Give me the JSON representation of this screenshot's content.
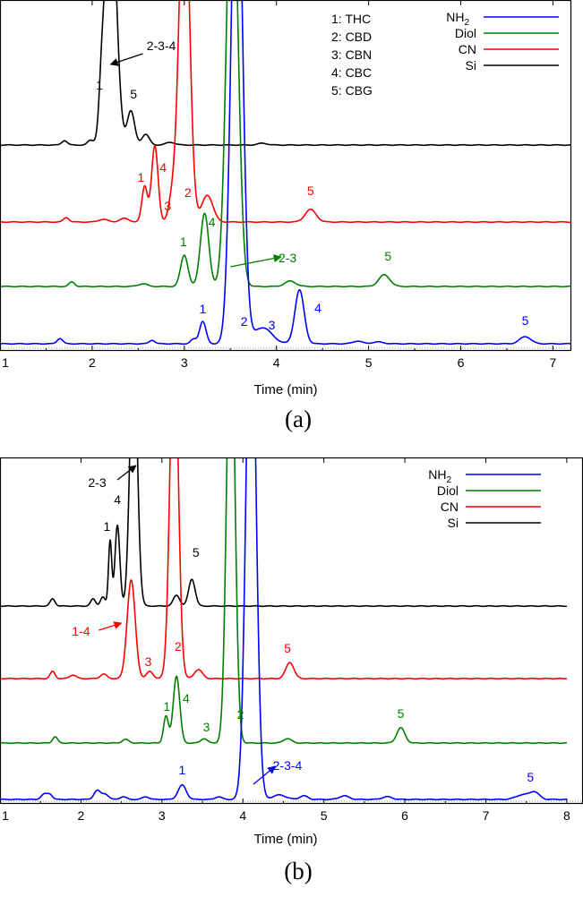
{
  "chart_data": [
    {
      "type": "line",
      "panel_tag": "(a)",
      "xlabel": "Time (min)",
      "ylabel": "",
      "xlim": [
        1,
        7.2
      ],
      "x_ticks": [
        1,
        2,
        3,
        4,
        5,
        6,
        7
      ],
      "grid": false,
      "legend_position": "top-right",
      "peak_key": [
        "1: THC",
        "2: CBD",
        "3: CBN",
        "4: CBC",
        "5: CBG"
      ],
      "legend": [
        {
          "name": "NH",
          "sub": "2",
          "color": "#0000ff"
        },
        {
          "name": "Diol",
          "color": "#008000"
        },
        {
          "name": "CN",
          "color": "#ff0000"
        },
        {
          "name": "Si",
          "color": "#000000"
        }
      ],
      "series": [
        {
          "name": "Si",
          "color": "#000000",
          "baseline": 162,
          "clip_top": 0,
          "peaks": [
            [
              1.7,
              5,
              0.03
            ],
            [
              1.98,
              5,
              0.03
            ],
            [
              2.1,
              35,
              0.025
            ],
            [
              2.2,
              300,
              0.06
            ],
            [
              2.42,
              38,
              0.04
            ],
            [
              2.58,
              12,
              0.04
            ],
            [
              2.85,
              3,
              0.05
            ],
            [
              3.85,
              2,
              0.05
            ]
          ],
          "labels": [
            {
              "text": "1",
              "x": 2.08,
              "y": 100
            },
            {
              "text": "5",
              "x": 2.45,
              "y": 110
            },
            {
              "text": "2-3-4",
              "x": 2.75,
              "y": 56,
              "arrow_to": [
                2.2,
                72
              ],
              "arrow_from": [
                2.55,
                60
              ]
            }
          ]
        },
        {
          "name": "CN",
          "color": "#ff0000",
          "baseline": 248,
          "clip_top": 0,
          "peaks": [
            [
              1.72,
              5,
              0.03
            ],
            [
              2.12,
              3,
              0.05
            ],
            [
              2.35,
              4,
              0.05
            ],
            [
              2.57,
              40,
              0.03
            ],
            [
              2.68,
              85,
              0.035
            ],
            [
              2.87,
              25,
              0.04
            ],
            [
              3.0,
              400,
              0.055
            ],
            [
              3.25,
              30,
              0.06
            ],
            [
              4.37,
              14,
              0.06
            ]
          ],
          "labels": [
            {
              "text": "1",
              "x": 2.53,
              "y": 203
            },
            {
              "text": "4",
              "x": 2.77,
              "y": 192
            },
            {
              "text": "3",
              "x": 2.82,
              "y": 235
            },
            {
              "text": "2",
              "x": 3.04,
              "y": 220
            },
            {
              "text": "5",
              "x": 4.37,
              "y": 218
            }
          ]
        },
        {
          "name": "Diol",
          "color": "#008000",
          "baseline": 320,
          "clip_top": 0,
          "peaks": [
            [
              1.78,
              5,
              0.03
            ],
            [
              2.55,
              3,
              0.05
            ],
            [
              3.0,
              35,
              0.04
            ],
            [
              3.22,
              82,
              0.045
            ],
            [
              3.52,
              500,
              0.06
            ],
            [
              4.15,
              6,
              0.06
            ],
            [
              5.17,
              13,
              0.06
            ]
          ],
          "labels": [
            {
              "text": "1",
              "x": 2.99,
              "y": 275
            },
            {
              "text": "4",
              "x": 3.3,
              "y": 253
            },
            {
              "text": "2-3",
              "x": 4.12,
              "y": 293,
              "arrow_to": [
                4.05,
                287
              ],
              "arrow_from": [
                3.5,
                298
              ]
            },
            {
              "text": "5",
              "x": 5.21,
              "y": 291
            }
          ]
        },
        {
          "name": "NH2",
          "color": "#0000ff",
          "baseline": 384,
          "clip_top": 0,
          "peaks": [
            [
              1.65,
              6,
              0.03
            ],
            [
              2.65,
              4,
              0.03
            ],
            [
              3.1,
              5,
              0.03
            ],
            [
              3.2,
              25,
              0.035
            ],
            [
              3.57,
              600,
              0.06
            ],
            [
              3.85,
              18,
              0.1
            ],
            [
              4.25,
              60,
              0.05
            ],
            [
              4.88,
              3,
              0.05
            ],
            [
              5.1,
              2,
              0.06
            ],
            [
              6.7,
              8,
              0.06
            ]
          ],
          "labels": [
            {
              "text": "1",
              "x": 3.2,
              "y": 350
            },
            {
              "text": "2",
              "x": 3.65,
              "y": 364
            },
            {
              "text": "3",
              "x": 3.95,
              "y": 368
            },
            {
              "text": "4",
              "x": 4.45,
              "y": 349
            },
            {
              "text": "5",
              "x": 6.7,
              "y": 363
            }
          ]
        }
      ]
    },
    {
      "type": "line",
      "panel_tag": "(b)",
      "xlabel": "Time (min)",
      "ylabel": "",
      "xlim": [
        1,
        8.2
      ],
      "x_ticks": [
        1,
        2,
        3,
        4,
        5,
        6,
        7,
        8
      ],
      "grid": false,
      "legend_position": "top-right",
      "legend": [
        {
          "name": "NH",
          "sub": "2",
          "color": "#0000ff"
        },
        {
          "name": "Diol",
          "color": "#008000"
        },
        {
          "name": "CN",
          "color": "#ff0000"
        },
        {
          "name": "Si",
          "color": "#000000"
        }
      ],
      "series": [
        {
          "name": "Si",
          "color": "#000000",
          "baseline": 677,
          "clip_top": 511,
          "peaks": [
            [
              1.65,
              8,
              0.03
            ],
            [
              2.15,
              8,
              0.03
            ],
            [
              2.27,
              10,
              0.03
            ],
            [
              2.36,
              73,
              0.02
            ],
            [
              2.45,
              90,
              0.03
            ],
            [
              2.65,
              300,
              0.045
            ],
            [
              3.18,
              12,
              0.04
            ],
            [
              3.37,
              30,
              0.04
            ]
          ],
          "labels": [
            {
              "text": "1",
              "x": 2.32,
              "y": 593
            },
            {
              "text": "4",
              "x": 2.45,
              "y": 563
            },
            {
              "text": "5",
              "x": 3.42,
              "y": 622
            },
            {
              "text": "2-3",
              "x": 2.2,
              "y": 544,
              "arrow_to": [
                2.68,
                520
              ],
              "arrow_from": [
                2.45,
                536
              ]
            }
          ]
        },
        {
          "name": "CN",
          "color": "#ff0000",
          "baseline": 758,
          "clip_top": 511,
          "peaks": [
            [
              1.65,
              8,
              0.03
            ],
            [
              1.9,
              4,
              0.04
            ],
            [
              2.28,
              5,
              0.04
            ],
            [
              2.62,
              110,
              0.05
            ],
            [
              2.85,
              8,
              0.04
            ],
            [
              3.15,
              400,
              0.05
            ],
            [
              3.45,
              10,
              0.05
            ],
            [
              4.58,
              18,
              0.05
            ]
          ],
          "labels": [
            {
              "text": "1-4",
              "x": 2.0,
              "y": 710,
              "arrow_to": [
                2.5,
                696
              ],
              "arrow_from": [
                2.22,
                704
              ]
            },
            {
              "text": "3",
              "x": 2.83,
              "y": 744
            },
            {
              "text": "2",
              "x": 3.2,
              "y": 727
            },
            {
              "text": "5",
              "x": 4.55,
              "y": 729
            }
          ]
        },
        {
          "name": "Diol",
          "color": "#008000",
          "baseline": 830,
          "clip_top": 511,
          "peaks": [
            [
              1.68,
              7,
              0.03
            ],
            [
              2.55,
              4,
              0.04
            ],
            [
              3.05,
              30,
              0.03
            ],
            [
              3.18,
              75,
              0.04
            ],
            [
              3.52,
              5,
              0.04
            ],
            [
              3.85,
              500,
              0.05
            ],
            [
              4.55,
              5,
              0.05
            ],
            [
              5.95,
              17,
              0.05
            ]
          ],
          "labels": [
            {
              "text": "1",
              "x": 3.06,
              "y": 794
            },
            {
              "text": "4",
              "x": 3.3,
              "y": 785
            },
            {
              "text": "3",
              "x": 3.55,
              "y": 817
            },
            {
              "text": "2",
              "x": 3.97,
              "y": 803
            },
            {
              "text": "5",
              "x": 5.95,
              "y": 802
            }
          ]
        },
        {
          "name": "NH2",
          "color": "#0000ff",
          "baseline": 893,
          "clip_top": 511,
          "peaks": [
            [
              1.55,
              6,
              0.04
            ],
            [
              1.62,
              5,
              0.03
            ],
            [
              2.2,
              10,
              0.04
            ],
            [
              2.3,
              6,
              0.04
            ],
            [
              2.52,
              3,
              0.04
            ],
            [
              2.8,
              3,
              0.04
            ],
            [
              3.25,
              16,
              0.05
            ],
            [
              3.7,
              3,
              0.04
            ],
            [
              4.1,
              600,
              0.06
            ],
            [
              4.45,
              5,
              0.08
            ],
            [
              4.75,
              4,
              0.05
            ],
            [
              5.25,
              4,
              0.06
            ],
            [
              5.78,
              3,
              0.06
            ],
            [
              7.45,
              5,
              0.08
            ],
            [
              7.6,
              8,
              0.06
            ]
          ],
          "labels": [
            {
              "text": "1",
              "x": 3.25,
              "y": 865
            },
            {
              "text": "2-3-4",
              "x": 4.55,
              "y": 860,
              "arrow_to": [
                4.4,
                856
              ],
              "arrow_from": [
                4.13,
                876
              ]
            },
            {
              "text": "5",
              "x": 7.55,
              "y": 873
            }
          ]
        }
      ]
    }
  ]
}
